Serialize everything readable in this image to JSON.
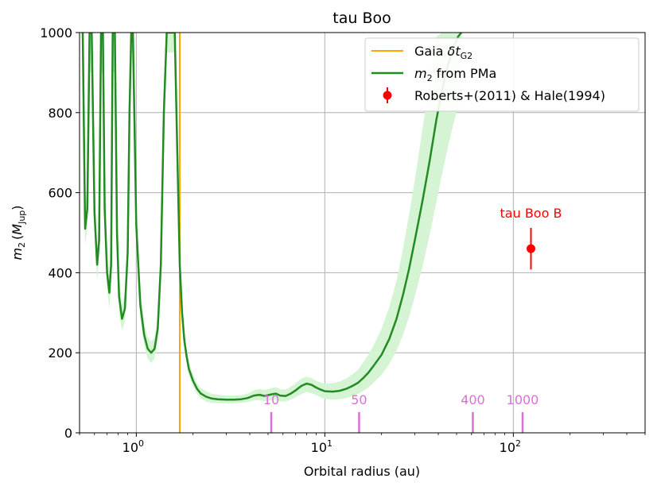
{
  "chart_data": {
    "type": "line",
    "title": "tau Boo",
    "xlabel": "Orbital radius (au)",
    "ylabel": "m2 (MJup)",
    "ylabel_parts": {
      "m": "m",
      "sub2": "2",
      "open": "(",
      "M": "M",
      "subJup": "Jup",
      "close": ")"
    },
    "x_scale": "log",
    "xlim": [
      0.5,
      500
    ],
    "ylim": [
      0,
      1000
    ],
    "x_ticks": [
      {
        "value": 1,
        "base": "10",
        "exp": "0"
      },
      {
        "value": 10,
        "base": "10",
        "exp": "1"
      },
      {
        "value": 100,
        "base": "10",
        "exp": "2"
      }
    ],
    "y_ticks": [
      {
        "value": 0,
        "label": "0"
      },
      {
        "value": 200,
        "label": "200"
      },
      {
        "value": 400,
        "label": "400"
      },
      {
        "value": 600,
        "label": "600"
      },
      {
        "value": 800,
        "label": "800"
      },
      {
        "value": 1000,
        "label": "1000"
      }
    ],
    "grid": true,
    "legend_position": "top-right",
    "legend": {
      "gaia": {
        "label_prefix": "Gaia ",
        "label_delta": "δt",
        "label_sub": "G2",
        "color": "#FFA500"
      },
      "pma": {
        "label_m": "m",
        "label_sub": "2",
        "label_rest": " from PMa",
        "color": "#228B22"
      },
      "companion": {
        "label": "Roberts+(2011) & Hale(1994)",
        "color": "#FF0000"
      }
    },
    "gaia_dt": {
      "x": 1.7
    },
    "series": [
      {
        "name": "m2 from PMa",
        "color": "#228B22",
        "band_color": "#d4f4d4",
        "x": [
          0.52,
          0.535,
          0.55,
          0.565,
          0.58,
          0.6,
          0.62,
          0.635,
          0.65,
          0.665,
          0.68,
          0.7,
          0.72,
          0.735,
          0.75,
          0.77,
          0.79,
          0.81,
          0.84,
          0.87,
          0.9,
          0.92,
          0.94,
          0.96,
          1.0,
          1.05,
          1.1,
          1.15,
          1.2,
          1.25,
          1.3,
          1.35,
          1.4,
          1.45,
          1.5,
          1.55,
          1.6,
          1.65,
          1.7,
          1.75,
          1.8,
          1.85,
          1.9,
          2.0,
          2.1,
          2.2,
          2.35,
          2.5,
          2.7,
          3.0,
          3.3,
          3.6,
          3.9,
          4.2,
          4.5,
          4.8,
          5.2,
          5.5,
          5.8,
          6.2,
          6.6,
          7.0,
          7.5,
          8.0,
          8.5,
          9.0,
          9.5,
          10.0,
          11.0,
          12.0,
          13.0,
          14.0,
          15.0,
          16.0,
          17.0,
          18.0,
          20.0,
          22.0,
          24.0,
          26.0,
          28.0,
          30.0,
          33.0,
          36.0,
          39.0,
          42.0,
          45.0,
          48.0,
          51.0,
          53.0
        ],
        "y": [
          1000,
          510,
          560,
          1000,
          1000,
          550,
          420,
          480,
          1000,
          1000,
          560,
          400,
          350,
          420,
          1000,
          1000,
          500,
          340,
          285,
          310,
          450,
          800,
          1000,
          1000,
          520,
          320,
          245,
          210,
          200,
          210,
          260,
          420,
          800,
          1000,
          1000,
          1000,
          1000,
          700,
          420,
          300,
          230,
          190,
          160,
          130,
          110,
          98,
          90,
          86,
          84,
          83,
          83,
          84,
          87,
          93,
          95,
          92,
          96,
          98,
          93,
          92,
          98,
          106,
          117,
          123,
          120,
          113,
          108,
          104,
          103,
          105,
          110,
          117,
          125,
          137,
          150,
          165,
          195,
          235,
          285,
          345,
          410,
          480,
          580,
          680,
          780,
          860,
          920,
          960,
          990,
          1000
        ],
        "band_upper": [
          1000,
          560,
          620,
          1000,
          1000,
          600,
          470,
          530,
          1000,
          1000,
          610,
          450,
          400,
          470,
          1000,
          1000,
          550,
          390,
          320,
          350,
          500,
          850,
          1000,
          1000,
          570,
          360,
          275,
          240,
          228,
          238,
          290,
          460,
          850,
          1000,
          1000,
          1000,
          1000,
          750,
          460,
          325,
          252,
          210,
          178,
          146,
          124,
          112,
          104,
          98,
          95,
          93,
          93,
          94,
          98,
          106,
          110,
          107,
          112,
          114,
          109,
          108,
          115,
          124,
          135,
          140,
          137,
          130,
          126,
          123,
          124,
          128,
          136,
          146,
          158,
          176,
          195,
          215,
          260,
          315,
          380,
          460,
          545,
          630,
          760,
          880,
          990,
          1000,
          1000,
          1000,
          1000,
          1000
        ],
        "band_lower": [
          900,
          470,
          510,
          900,
          900,
          510,
          380,
          440,
          900,
          900,
          520,
          360,
          310,
          380,
          900,
          900,
          460,
          300,
          255,
          280,
          410,
          750,
          950,
          950,
          480,
          285,
          220,
          185,
          175,
          185,
          230,
          380,
          750,
          950,
          950,
          950,
          950,
          650,
          385,
          275,
          210,
          172,
          144,
          116,
          98,
          86,
          78,
          75,
          74,
          74,
          74,
          75,
          77,
          81,
          82,
          79,
          82,
          83,
          79,
          78,
          83,
          89,
          97,
          102,
          99,
          94,
          89,
          85,
          83,
          84,
          87,
          92,
          97,
          105,
          113,
          124,
          145,
          172,
          205,
          245,
          290,
          340,
          415,
          495,
          575,
          650,
          715,
          770,
          815,
          845
        ]
      }
    ],
    "companion": {
      "name": "tau Boo B",
      "x": 124,
      "y": 460,
      "yerr": 52,
      "color": "#FF0000"
    },
    "period_markers": {
      "color": "#DA70D6",
      "items": [
        {
          "label": "10",
          "x": 5.2
        },
        {
          "label": "50",
          "x": 15.2
        },
        {
          "label": "400",
          "x": 61
        },
        {
          "label": "1000",
          "x": 112
        }
      ]
    }
  }
}
